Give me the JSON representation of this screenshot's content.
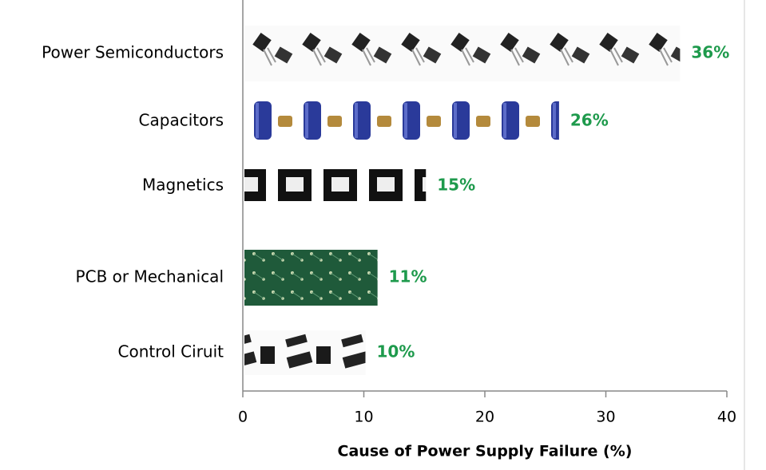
{
  "chart_data": {
    "type": "bar",
    "orientation": "horizontal",
    "categories": [
      "Power Semiconductors",
      "Capacitors",
      "Magnetics",
      "PCB or Mechanical",
      "Control Ciruit"
    ],
    "values": [
      36,
      26,
      15,
      11,
      10
    ],
    "value_labels": [
      "36%",
      "26%",
      "15%",
      "11%",
      "10%"
    ],
    "xlabel": "Cause of Power Supply Failure (%)",
    "xlim": [
      0,
      40
    ],
    "xticks": [
      0,
      10,
      20,
      30,
      40
    ],
    "value_label_color": "#1e9a4c"
  }
}
